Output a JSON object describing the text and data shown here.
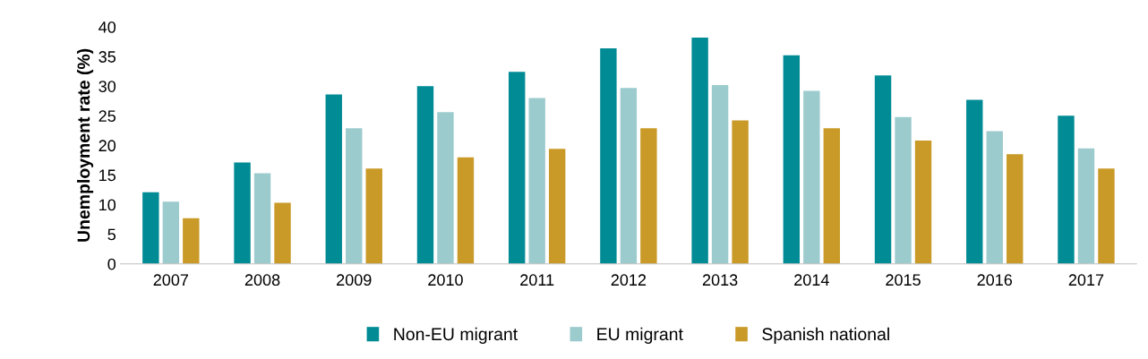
{
  "chart_data": {
    "type": "bar",
    "ylabel": "Unemployment rate (%)",
    "categories": [
      "2007",
      "2008",
      "2009",
      "2010",
      "2011",
      "2012",
      "2013",
      "2014",
      "2015",
      "2016",
      "2017"
    ],
    "series": [
      {
        "name": "Non-EU migrant",
        "color": "#008b95",
        "values": [
          12.1,
          17.1,
          28.6,
          30.0,
          32.4,
          36.4,
          38.2,
          35.2,
          31.8,
          27.7,
          25.0
        ]
      },
      {
        "name": "EU migrant",
        "color": "#9ccbce",
        "values": [
          10.5,
          15.3,
          22.9,
          25.6,
          28.0,
          29.7,
          30.2,
          29.2,
          24.8,
          22.4,
          19.5
        ]
      },
      {
        "name": "Spanish national",
        "color": "#c99a27",
        "values": [
          7.7,
          10.3,
          16.1,
          18.0,
          19.4,
          22.9,
          24.2,
          22.9,
          20.8,
          18.5,
          16.1
        ]
      }
    ],
    "ylim": [
      0,
      40
    ],
    "yticks": [
      0,
      5,
      10,
      15,
      20,
      25,
      30,
      35,
      40
    ],
    "grid": false,
    "legend": "bottom"
  }
}
